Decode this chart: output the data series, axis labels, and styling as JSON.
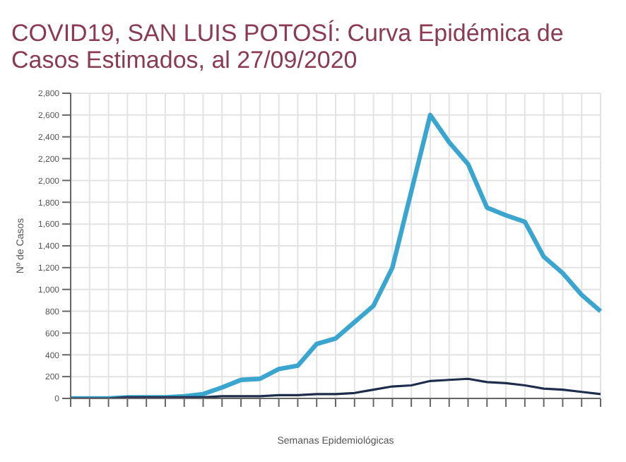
{
  "chart_data": {
    "type": "line",
    "title": "COVID19, SAN LUIS POTOSÍ: Curva Epidémica de Casos Estimados, al 27/09/2020",
    "xlabel": "Semanas Epidemiológicas",
    "ylabel": "Nº de Casos",
    "categories": [
      null,
      null,
      null,
      null,
      null,
      null,
      null,
      null,
      null,
      null,
      null,
      null,
      null,
      null,
      null,
      null,
      null,
      null,
      null,
      null,
      null,
      null,
      null,
      null,
      null,
      null,
      null,
      null,
      null
    ],
    "series": [
      {
        "color": "#3aa6d0",
        "values": [
          0,
          0,
          0,
          10,
          10,
          10,
          20,
          40,
          100,
          170,
          180,
          270,
          300,
          500,
          550,
          700,
          850,
          1200,
          1900,
          2600,
          2350,
          2150,
          1750,
          1680,
          1620,
          1300,
          1150,
          950,
          800
        ]
      },
      {
        "color": "#1f2d4d",
        "values": [
          0,
          0,
          0,
          10,
          10,
          10,
          10,
          10,
          20,
          20,
          20,
          30,
          30,
          40,
          40,
          50,
          80,
          110,
          120,
          160,
          170,
          180,
          150,
          140,
          120,
          90,
          80,
          60,
          40
        ]
      }
    ],
    "ylim": [
      0,
      2800
    ],
    "yticks": [
      0,
      {
        "value": 200,
        "label": "200"
      },
      {
        "value": 400,
        "label": "400"
      },
      {
        "value": 600,
        "label": "600"
      },
      {
        "value": 800,
        "label": "800"
      },
      {
        "value": 1000,
        "label": "1,000"
      },
      {
        "value": 1200,
        "label": "1,200"
      },
      {
        "value": 1400,
        "label": "1,400"
      },
      {
        "value": 1600,
        "label": "1,600"
      },
      {
        "value": 1800,
        "label": "1,800"
      },
      {
        "value": 2000,
        "label": "2,000"
      },
      {
        "value": 2200,
        "label": "2,200"
      },
      {
        "value": 2400,
        "label": "2,400"
      },
      {
        "value": 2600,
        "label": "2,600"
      },
      {
        "value": 2800,
        "label": "2,800"
      }
    ],
    "grid": true,
    "marker": "none",
    "line_style": "solid"
  }
}
